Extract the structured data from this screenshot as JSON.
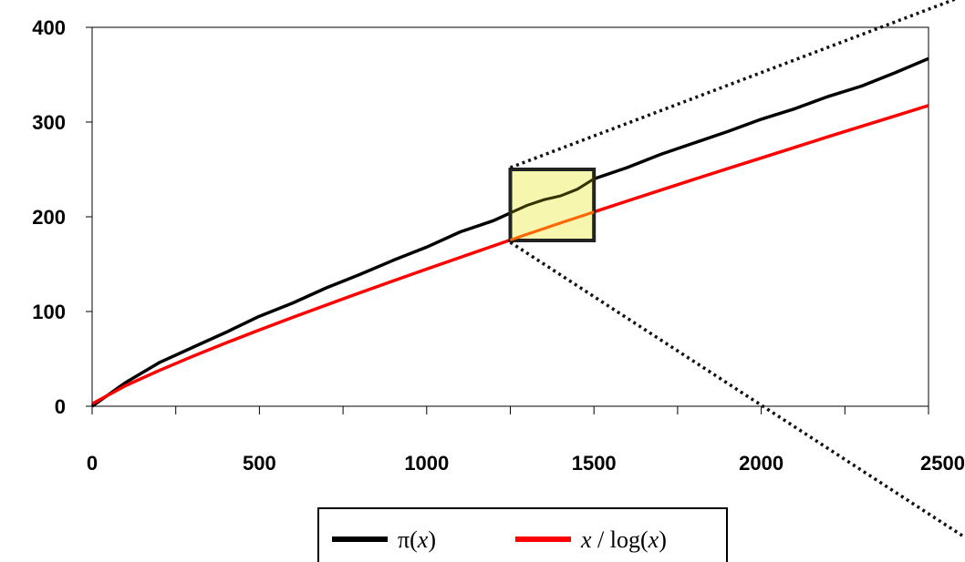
{
  "chart_data": {
    "type": "line",
    "title": "",
    "xlabel": "",
    "ylabel": "",
    "xlim": [
      0,
      2500
    ],
    "ylim": [
      0,
      400
    ],
    "x_ticks": [
      "0",
      "500",
      "1000",
      "1500",
      "2000",
      "2500"
    ],
    "y_ticks": [
      "0",
      "100",
      "200",
      "300",
      "400"
    ],
    "grid": false,
    "legend_position": "bottom-center",
    "legend": {
      "pi": {
        "label_main": "π(",
        "label_var": "x",
        "label_end": ")"
      },
      "li": {
        "label_var1": "x",
        "label_mid": " / log(",
        "label_var2": "x",
        "label_end": ")"
      }
    },
    "series": [
      {
        "name": "π(x)",
        "color": "#000000",
        "x": [
          0,
          100,
          200,
          300,
          400,
          500,
          600,
          700,
          800,
          900,
          1000,
          1100,
          1200,
          1250,
          1300,
          1350,
          1400,
          1450,
          1500,
          1600,
          1700,
          1800,
          1900,
          2000,
          2100,
          2200,
          2300,
          2400,
          2500
        ],
        "y": [
          0,
          25,
          46,
          62,
          78,
          95,
          109,
          125,
          139,
          154,
          168,
          184,
          196,
          204,
          212,
          218,
          222,
          229,
          240,
          252,
          266,
          278,
          290,
          303,
          314,
          327,
          338,
          352,
          367
        ]
      },
      {
        "name": "x/log(x)",
        "color": "#ff0000",
        "x": [
          2,
          100,
          200,
          300,
          400,
          500,
          600,
          700,
          800,
          900,
          1000,
          1100,
          1200,
          1250,
          1300,
          1400,
          1500,
          1600,
          1700,
          1800,
          1900,
          2000,
          2100,
          2200,
          2300,
          2400,
          2500
        ],
        "y": [
          2.9,
          21.7,
          37.7,
          52.6,
          66.8,
          80.5,
          93.8,
          106.8,
          119.7,
          132.3,
          144.8,
          157.1,
          169.3,
          175.5,
          181.5,
          193.5,
          205.1,
          216.7,
          228.2,
          239.6,
          250.9,
          262.1,
          273.3,
          284.5,
          295.5,
          306.4,
          317.4
        ]
      }
    ],
    "annotations": {
      "zoom_box": {
        "x0": 1250,
        "x1": 1500,
        "y0": 175,
        "y1": 250,
        "fill": "#f5f5a0",
        "stroke": "#222222"
      }
    }
  }
}
